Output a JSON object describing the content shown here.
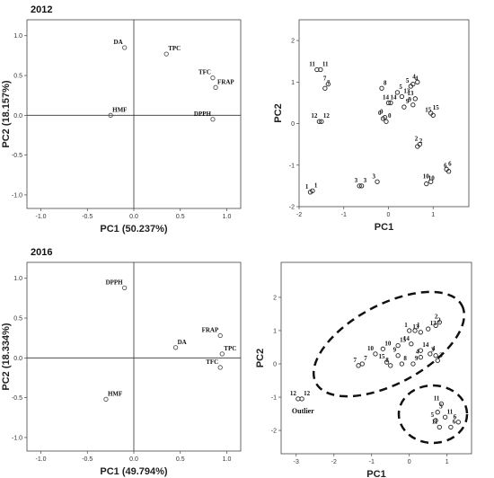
{
  "chart_data": [
    {
      "type": "scatter",
      "title": "2012",
      "x_label": "PC1 (50.237%)",
      "y_label": "PC2 (18.157%)",
      "x": [
        -0.1,
        0.35,
        0.85,
        0.88,
        0.85,
        -0.25
      ],
      "y": [
        0.85,
        0.77,
        0.47,
        0.35,
        -0.05,
        0.0
      ],
      "labels": [
        "DA",
        "TPC",
        "TFC",
        "FRAP",
        "DPPH",
        "HMF"
      ],
      "xlim": [
        -1.15,
        1.15
      ],
      "ylim": [
        -1.17,
        1.2
      ],
      "xticks": [
        {
          "value": -1,
          "label": "-1.0"
        },
        -0.5,
        {
          "value": 0,
          "label": "0.0"
        },
        0.5,
        {
          "value": 1,
          "label": "1.0"
        }
      ],
      "yticks": [
        {
          "value": -1,
          "label": "-1.0"
        },
        -0.5,
        {
          "value": 0,
          "label": "0.0"
        },
        0.5,
        {
          "value": 1,
          "label": "1.0"
        }
      ],
      "reference_lines": true,
      "color": "#555555"
    },
    {
      "type": "scatter",
      "x_label": "PC1",
      "y_label": "PC2",
      "x": [
        -1.6,
        -1.52,
        -1.35,
        -1.42,
        -1.55,
        -1.5,
        -1.75,
        -1.7,
        -0.65,
        -0.6,
        -0.25,
        -0.15,
        -0.12,
        -0.05,
        -0.08,
        0.0,
        0.05,
        0.2,
        0.5,
        0.3,
        0.6,
        0.35,
        0.55,
        0.55,
        0.65,
        0.95,
        1.0,
        0.65,
        0.7,
        1.3,
        1.35,
        0.85,
        0.95
      ],
      "y": [
        1.3,
        1.3,
        0.95,
        0.85,
        0.05,
        0.05,
        -1.65,
        -1.62,
        -1.5,
        -1.5,
        -1.4,
        0.85,
        0.12,
        0.05,
        0.15,
        0.5,
        0.5,
        0.75,
        0.9,
        0.65,
        0.6,
        0.4,
        0.45,
        0.95,
        1.0,
        0.25,
        0.2,
        -0.55,
        -0.5,
        -1.1,
        -1.15,
        -1.45,
        -1.4
      ],
      "labels": [
        "11",
        "11",
        "7",
        "7",
        "12",
        "12",
        "1",
        "1",
        "3",
        "3",
        "3",
        "8",
        "0",
        "0",
        "0",
        "14",
        "14",
        "5",
        "5",
        "13",
        "13",
        "9",
        "9",
        "4",
        "4",
        "15",
        "15",
        "2",
        "2",
        "6",
        "6",
        "10",
        "10"
      ],
      "xlim": [
        -2,
        1.8
      ],
      "ylim": [
        -2,
        2.5
      ],
      "xticks": [
        -2,
        -1,
        0,
        1
      ],
      "yticks": [
        -2,
        -1,
        0,
        1,
        2
      ],
      "reference_lines": false,
      "color": "#222222"
    },
    {
      "type": "scatter",
      "title": "2016",
      "x_label": "PC1 (49.794%)",
      "y_label": "PC2 (18.334%)",
      "x": [
        -0.1,
        0.45,
        0.93,
        0.95,
        0.93,
        -0.3
      ],
      "y": [
        0.88,
        0.13,
        0.28,
        0.05,
        -0.12,
        -0.52
      ],
      "labels": [
        "DPPH",
        "DA",
        "FRAP",
        "TPC",
        "TFC",
        "HMF"
      ],
      "xlim": [
        -1.15,
        1.15
      ],
      "ylim": [
        -1.17,
        1.2
      ],
      "xticks": [
        {
          "value": -1,
          "label": "-1.0"
        },
        -0.5,
        {
          "value": 0,
          "label": "0.0"
        },
        0.5,
        {
          "value": 1,
          "label": "1.0"
        }
      ],
      "yticks": [
        {
          "value": -1,
          "label": "-1.0"
        },
        -0.5,
        {
          "value": 0,
          "label": "0.0"
        },
        0.5,
        {
          "value": 1,
          "label": "1.0"
        }
      ],
      "reference_lines": true,
      "color": "#555555"
    },
    {
      "type": "scatter",
      "x_label": "PC1",
      "y_label": "PC2",
      "annotation": "Outlier",
      "x": [
        -2.95,
        -2.85,
        -1.35,
        -1.25,
        -0.9,
        -0.7,
        -0.6,
        -0.3,
        -0.5,
        -0.2,
        -0.3,
        0.1,
        0.05,
        0.3,
        0.0,
        0.15,
        0.3,
        0.5,
        0.8,
        0.7,
        0.3,
        0.55,
        0.7,
        0.75,
        0.85,
        0.95,
        0.8,
        0.75,
        0.7,
        1.1,
        1.3
      ],
      "y": [
        -1.05,
        -1.05,
        -0.05,
        0.0,
        0.3,
        0.45,
        0.05,
        0.55,
        -0.05,
        0.0,
        0.25,
        0.0,
        0.6,
        0.4,
        1.0,
        1.0,
        0.95,
        1.05,
        1.25,
        1.15,
        0.2,
        0.3,
        0.25,
        0.1,
        -1.2,
        -1.6,
        -1.9,
        -1.45,
        -1.7,
        -1.9,
        -1.75
      ],
      "labels": [
        "12",
        "12",
        "7",
        "7",
        "10",
        "10",
        "15",
        "15",
        "8",
        "8",
        "9",
        "9",
        "14",
        "14",
        "1",
        "1",
        "13",
        "13",
        "2",
        "2",
        "4",
        "4",
        "3",
        "3",
        "11",
        "11",
        "11",
        "5",
        "5",
        "6",
        "6"
      ],
      "xlim": [
        -3.4,
        1.65
      ],
      "ylim": [
        -2.7,
        3.05
      ],
      "xticks": [
        -3,
        -2,
        -1,
        0,
        1
      ],
      "yticks": [
        -2,
        -1,
        0,
        1,
        2
      ],
      "reference_lines": false,
      "color": "#222222"
    }
  ]
}
